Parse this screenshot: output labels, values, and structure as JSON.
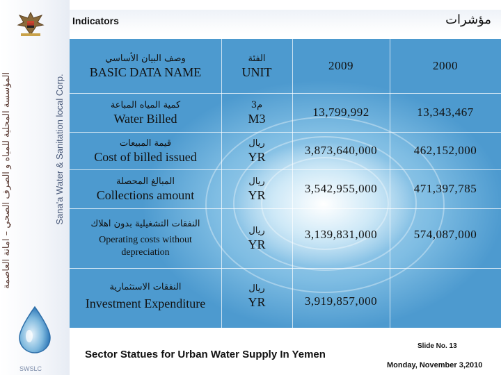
{
  "sidebar": {
    "org_arabic": "المؤسسة المحلية للمياه و الصرف الصحي – امانة العاصمة",
    "org_english": "Sana'a Water & Sanitation local Corp.",
    "logo_text": "SWSLC"
  },
  "header": {
    "title_en": "Indicators",
    "title_ar": "مؤشرات"
  },
  "table": {
    "columns": [
      {
        "ar": "وصف البيان الأساسي",
        "en": "BASIC DATA NAME"
      },
      {
        "ar": "الفئة",
        "en": "UNIT"
      },
      {
        "label": "2009"
      },
      {
        "label": "2000"
      }
    ],
    "rows": [
      {
        "ar": "كمية المياه المباعة",
        "en": "Water Billed",
        "unit_ar": "م3",
        "unit_en": "M3",
        "y2009": "13,799,992",
        "y2000": "13,343,467"
      },
      {
        "ar": "قيمة المبيعات",
        "en": "Cost of billed issued",
        "unit_ar": "ريال",
        "unit_en": "YR",
        "y2009": "3,873,640,000",
        "y2000": "462,152,000"
      },
      {
        "ar": "المبالغ المحصلة",
        "en": "Collections amount",
        "unit_ar": "ريال",
        "unit_en": "YR",
        "y2009": "3,542,955,000",
        "y2000": "471,397,785"
      },
      {
        "ar": "النفقات التشغيلية بدون اهلاك",
        "en": "Operating costs without depreciation",
        "unit_ar": "ريال",
        "unit_en": "YR",
        "y2009": "3,139,831,000",
        "y2000": "574,087,000"
      },
      {
        "ar": "النفقات الاستثمارية",
        "en": "Investment Expenditure",
        "unit_ar": "ريال",
        "unit_en": "YR",
        "y2009": "3,919,857,000",
        "y2000": ""
      }
    ]
  },
  "footer": {
    "title": "Sector Statues for Urban Water Supply In Yemen",
    "slide_no": "Slide No. 13",
    "date": "Monday, November 3,2010"
  },
  "colors": {
    "panel_blue": "#4d9acf",
    "panel_light": "#cfe9f7",
    "header_band": "#eef2f8"
  }
}
